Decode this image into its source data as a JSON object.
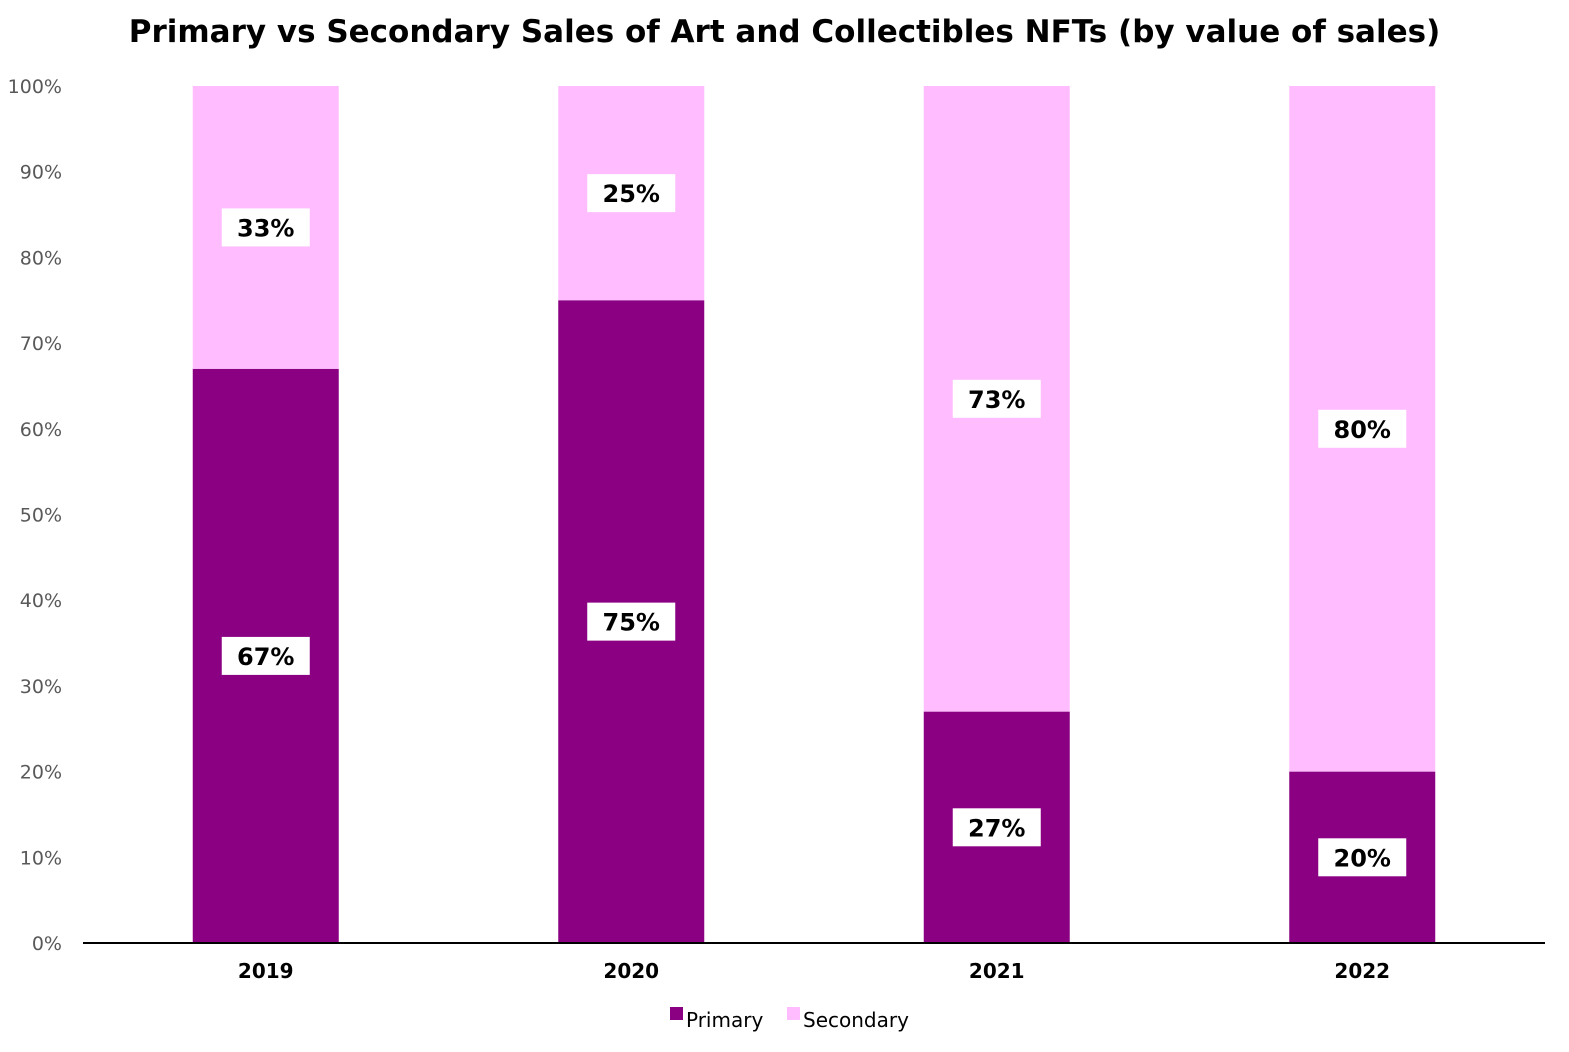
{
  "chart_data": {
    "type": "bar",
    "stacked": true,
    "title": "Primary vs Secondary Sales of Art and Collectibles NFTs (by value of sales)",
    "categories": [
      "2019",
      "2020",
      "2021",
      "2022"
    ],
    "series": [
      {
        "name": "Primary",
        "values": [
          67,
          75,
          27,
          20
        ],
        "labels": [
          "67%",
          "75%",
          "27%",
          "20%"
        ],
        "color": "#8B0083"
      },
      {
        "name": "Secondary",
        "values": [
          33,
          25,
          73,
          80
        ],
        "labels": [
          "33%",
          "25%",
          "73%",
          "80%"
        ],
        "color": "#FFBDFF"
      }
    ],
    "ylim": [
      0,
      100
    ],
    "yticks": [
      0,
      10,
      20,
      30,
      40,
      50,
      60,
      70,
      80,
      90,
      100
    ],
    "ytick_labels": [
      "0%",
      "10%",
      "20%",
      "30%",
      "40%",
      "50%",
      "60%",
      "70%",
      "80%",
      "90%",
      "100%"
    ],
    "grid": false,
    "legend_position": "bottom",
    "xlabel": "",
    "ylabel": ""
  }
}
